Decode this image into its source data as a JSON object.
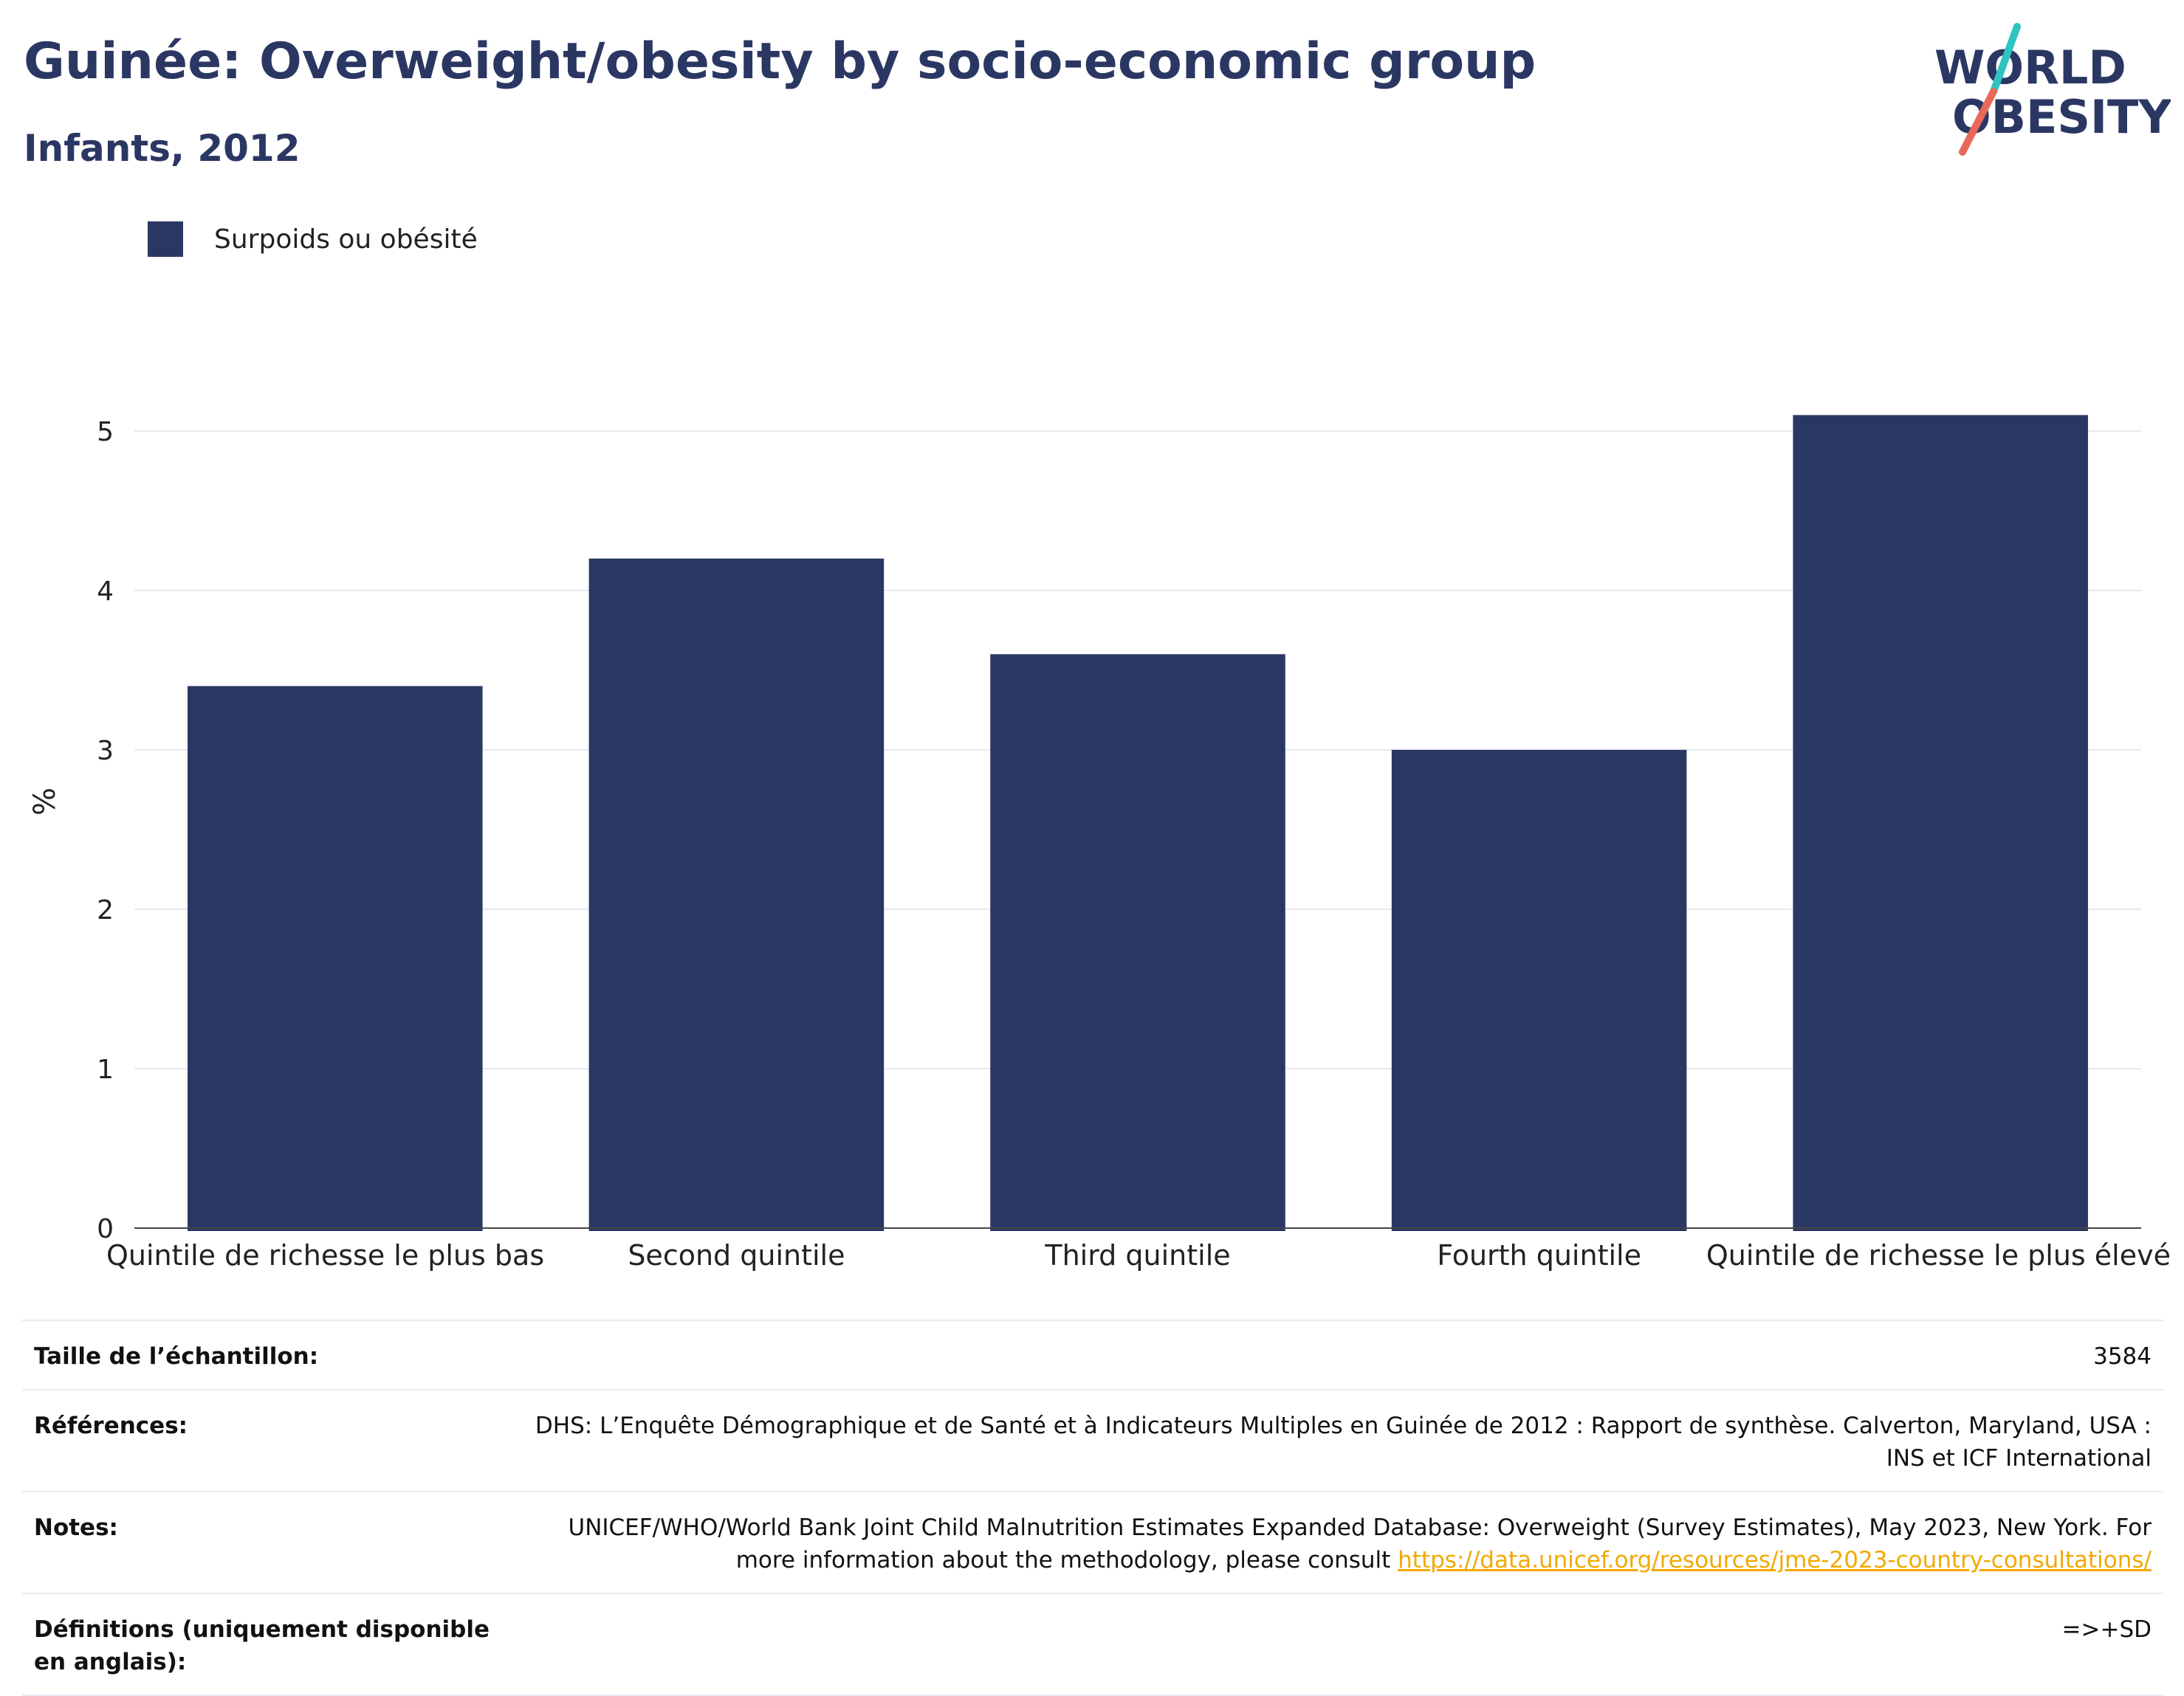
{
  "header": {
    "title": "Guinée: Overweight/obesity by socio-economic group",
    "subtitle": "Infants, 2012"
  },
  "logo": {
    "line1": "WORLD",
    "line2": "OBESITY",
    "colors": {
      "text": "#2b3763",
      "slash_top": "#2ec4c0",
      "slash_bottom": "#e8685a"
    }
  },
  "legend": {
    "items": [
      {
        "label": "Surpoids ou obésité",
        "color": "#2b3763"
      }
    ]
  },
  "chart_data": {
    "type": "bar",
    "title": "Guinée: Overweight/obesity by socio-economic group",
    "subtitle": "Infants, 2012",
    "categories": [
      "Quintile de richesse le plus bas",
      "Second quintile",
      "Third quintile",
      "Fourth quintile",
      "Quintile de richesse le plus élevé"
    ],
    "series": [
      {
        "name": "Surpoids ou obésité",
        "values": [
          3.4,
          4.2,
          3.6,
          3.0,
          5.1
        ],
        "color": "#2b3763"
      }
    ],
    "xlabel": "",
    "ylabel": "%",
    "ylim": [
      0,
      5.4
    ],
    "yticks": [
      0,
      1,
      2,
      3,
      4,
      5
    ],
    "grid": true,
    "legend_position": "top-left"
  },
  "info": {
    "sample_size": {
      "label": "Taille de l’échantillon:",
      "value": "3584"
    },
    "references": {
      "label": "Références:",
      "value": "DHS: L’Enquête Démographique et de Santé et à Indicateurs Multiples en Guinée de 2012 : Rapport de synthèse. Calverton, Maryland, USA : INS et ICF International"
    },
    "notes": {
      "label": "Notes:",
      "value": "UNICEF/WHO/World Bank Joint Child Malnutrition Estimates Expanded Database: Overweight (Survey Estimates), May 2023, New York. For more information about the methodology, please consult",
      "link": "https://data.unicef.org/resources/jme-2023-country-consultations/"
    },
    "definitions": {
      "label": "Définitions (uniquement disponible en anglais):",
      "value": "=>+SD"
    }
  }
}
